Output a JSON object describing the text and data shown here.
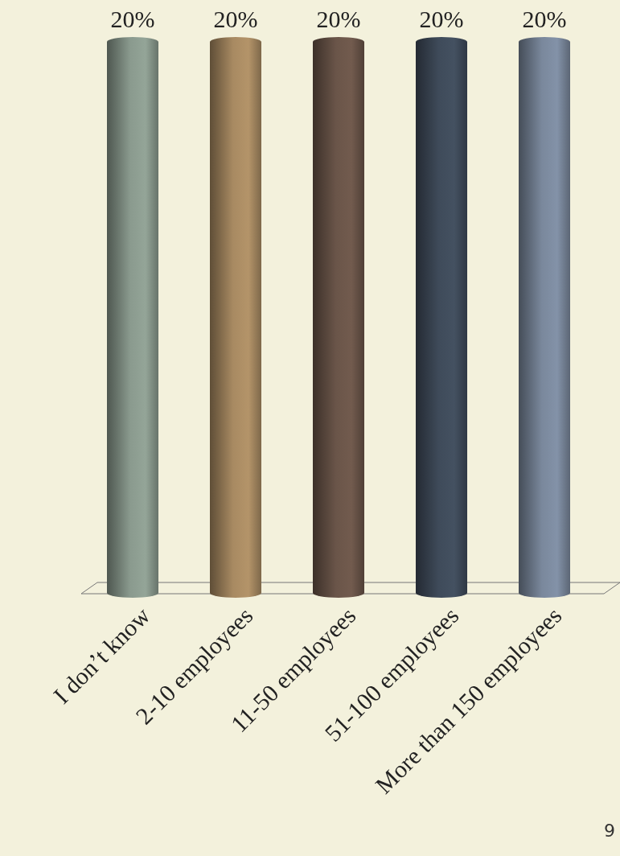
{
  "chart_data": {
    "type": "bar",
    "categories": [
      "I don’t know",
      "2-10 employees",
      "11-50 employees",
      "51-100 employees",
      "More than 150 employees"
    ],
    "values": [
      20,
      20,
      20,
      20,
      20
    ],
    "colors": [
      "#8a9a8e",
      "#a88a62",
      "#6a5549",
      "#3f4b5a",
      "#7a889c"
    ],
    "value_labels": [
      "20%",
      "20%",
      "20%",
      "20%",
      "20%"
    ],
    "annotations": [
      "9"
    ]
  }
}
